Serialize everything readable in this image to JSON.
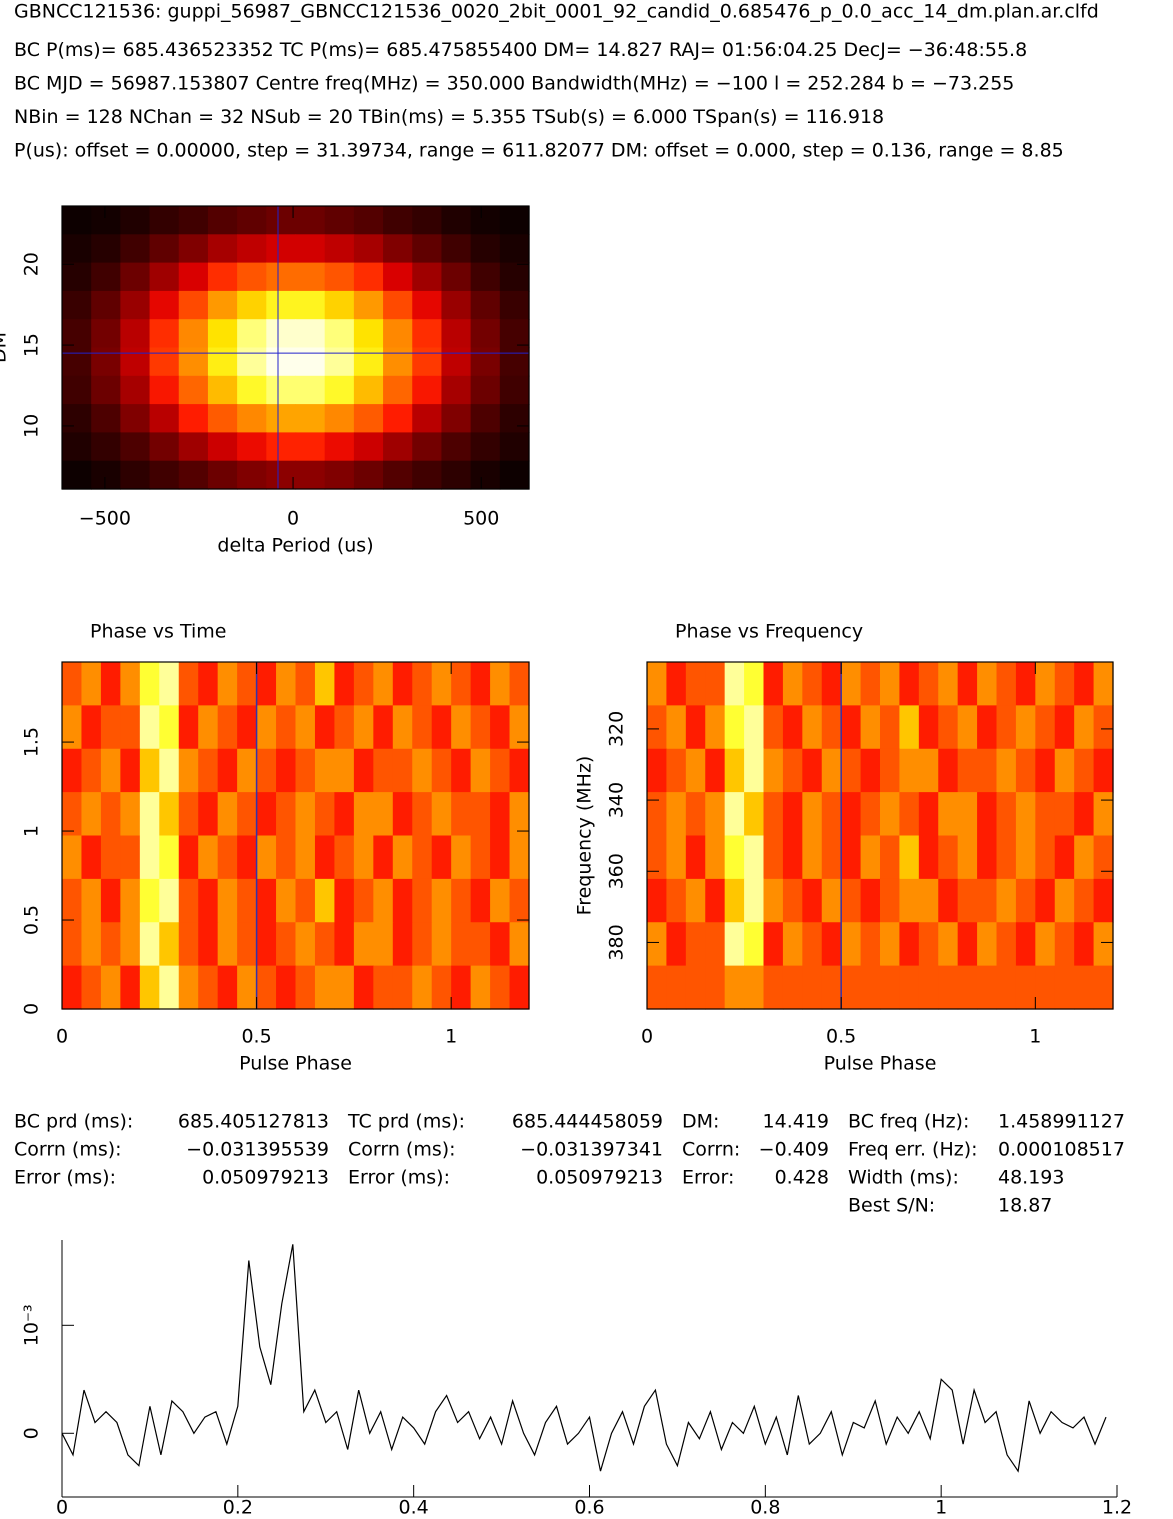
{
  "header": [
    "GBNCC121536: guppi_56987_GBNCC121536_0020_2bit_0001_92_candid_0.685476_p_0.0_acc_14_dm.plan.ar.clfd",
    "BC P(ms)= 685.436523352 TC P(ms)= 685.475855400 DM= 14.827 RAJ= 01:56:04.25 DecJ= −36:48:55.8",
    "BC MJD = 56987.153807 Centre freq(MHz) = 350.000 Bandwidth(MHz) = −100 l = 252.284 b = −73.255",
    "NBin = 128 NChan = 32 NSub = 20 TBin(ms) = 5.355 TSub(s) = 6.000 TSpan(s) = 116.918",
    "P(us): offset = 0.00000, step = 31.39734, range = 611.82077 DM: offset = 0.000, step = 0.136, range = 8.85"
  ],
  "stats": [
    [
      "BC prd (ms):",
      "685.405127813",
      "TC prd (ms):",
      "685.444458059",
      "DM:",
      "14.419",
      "BC freq (Hz):",
      "1.458991127"
    ],
    [
      "Corrn (ms):",
      "−0.031395539",
      "Corrn (ms):",
      "−0.031397341",
      "Corrn:",
      "−0.409",
      "Freq err. (Hz):",
      "0.000108517"
    ],
    [
      "Error (ms):",
      "0.050979213",
      "Error (ms):",
      "0.050979213",
      "Error:",
      "0.428",
      "Width (ms):",
      "48.193"
    ],
    [
      "Best S/N:",
      "18.87"
    ]
  ],
  "chart_data": [
    {
      "type": "heatmap",
      "xlabel": "delta Period (us)",
      "ylabel": "DM",
      "xlim": [
        -614,
        627
      ],
      "ylim": [
        6.1,
        23.6
      ],
      "xticks": [
        {
          "value": -500,
          "label": "−500"
        },
        0,
        500
      ],
      "yticks": [
        10,
        15,
        20
      ],
      "crosshair": {
        "x": -40,
        "y": 14.5
      },
      "crosshair_color": "#2222cc",
      "z": [
        [
          0.02,
          0.03,
          0.05,
          0.08,
          0.1,
          0.13,
          0.15,
          0.17,
          0.17,
          0.15,
          0.13,
          0.1,
          0.08,
          0.05,
          0.03,
          0.02
        ],
        [
          0.04,
          0.06,
          0.1,
          0.15,
          0.2,
          0.26,
          0.3,
          0.33,
          0.33,
          0.3,
          0.26,
          0.2,
          0.15,
          0.1,
          0.06,
          0.04
        ],
        [
          0.06,
          0.1,
          0.17,
          0.25,
          0.34,
          0.43,
          0.5,
          0.54,
          0.54,
          0.5,
          0.43,
          0.34,
          0.25,
          0.17,
          0.1,
          0.06
        ],
        [
          0.09,
          0.15,
          0.24,
          0.36,
          0.48,
          0.62,
          0.72,
          0.78,
          0.78,
          0.72,
          0.62,
          0.48,
          0.36,
          0.24,
          0.15,
          0.09
        ],
        [
          0.11,
          0.18,
          0.29,
          0.43,
          0.59,
          0.75,
          0.87,
          0.95,
          0.95,
          0.87,
          0.75,
          0.59,
          0.43,
          0.29,
          0.18,
          0.11
        ],
        [
          0.11,
          0.19,
          0.3,
          0.45,
          0.6,
          0.77,
          0.9,
          0.98,
          0.98,
          0.9,
          0.77,
          0.6,
          0.45,
          0.3,
          0.19,
          0.11
        ],
        [
          0.1,
          0.17,
          0.26,
          0.39,
          0.53,
          0.68,
          0.79,
          0.86,
          0.86,
          0.79,
          0.68,
          0.53,
          0.39,
          0.26,
          0.17,
          0.1
        ],
        [
          0.07,
          0.12,
          0.2,
          0.29,
          0.4,
          0.51,
          0.59,
          0.64,
          0.64,
          0.59,
          0.51,
          0.4,
          0.29,
          0.2,
          0.12,
          0.07
        ],
        [
          0.05,
          0.08,
          0.12,
          0.18,
          0.25,
          0.32,
          0.37,
          0.41,
          0.41,
          0.37,
          0.32,
          0.25,
          0.18,
          0.12,
          0.08,
          0.05
        ],
        [
          0.02,
          0.04,
          0.07,
          0.1,
          0.13,
          0.17,
          0.2,
          0.22,
          0.22,
          0.2,
          0.17,
          0.13,
          0.1,
          0.07,
          0.04,
          0.02
        ]
      ]
    },
    {
      "type": "heatmap",
      "title": "Phase vs Time",
      "xlabel": "Pulse Phase",
      "xlim": [
        0,
        1.2
      ],
      "ylim": [
        0,
        1.95
      ],
      "xticks": [
        0,
        0.5,
        1
      ],
      "yticks": [
        0,
        0.5,
        1,
        1.5
      ],
      "marker_x": 0.5,
      "crosshair_color": "#3333aa",
      "z": [
        [
          0.5,
          0.6,
          0.4,
          0.6,
          0.8,
          0.9,
          0.5,
          0.4,
          0.6,
          0.5,
          0.4,
          0.6,
          0.5,
          0.7,
          0.4,
          0.5,
          0.6,
          0.4,
          0.5,
          0.6,
          0.5,
          0.4,
          0.6,
          0.5
        ],
        [
          0.6,
          0.4,
          0.5,
          0.5,
          0.9,
          0.8,
          0.4,
          0.6,
          0.5,
          0.4,
          0.6,
          0.5,
          0.6,
          0.4,
          0.5,
          0.6,
          0.4,
          0.6,
          0.5,
          0.4,
          0.6,
          0.5,
          0.4,
          0.6
        ],
        [
          0.4,
          0.5,
          0.6,
          0.4,
          0.7,
          0.9,
          0.6,
          0.5,
          0.4,
          0.6,
          0.5,
          0.4,
          0.5,
          0.6,
          0.6,
          0.4,
          0.5,
          0.5,
          0.6,
          0.5,
          0.4,
          0.6,
          0.5,
          0.4
        ],
        [
          0.5,
          0.6,
          0.5,
          0.6,
          0.9,
          0.7,
          0.5,
          0.4,
          0.6,
          0.5,
          0.4,
          0.5,
          0.6,
          0.5,
          0.4,
          0.6,
          0.6,
          0.4,
          0.5,
          0.6,
          0.5,
          0.5,
          0.4,
          0.6
        ],
        [
          0.6,
          0.4,
          0.5,
          0.5,
          0.9,
          0.8,
          0.4,
          0.6,
          0.5,
          0.4,
          0.6,
          0.5,
          0.6,
          0.4,
          0.5,
          0.6,
          0.4,
          0.6,
          0.5,
          0.4,
          0.6,
          0.5,
          0.4,
          0.6
        ],
        [
          0.5,
          0.6,
          0.4,
          0.6,
          0.8,
          0.9,
          0.5,
          0.4,
          0.6,
          0.5,
          0.4,
          0.6,
          0.5,
          0.7,
          0.4,
          0.5,
          0.6,
          0.4,
          0.5,
          0.6,
          0.5,
          0.4,
          0.6,
          0.5
        ],
        [
          0.5,
          0.6,
          0.5,
          0.6,
          0.9,
          0.7,
          0.5,
          0.4,
          0.6,
          0.5,
          0.4,
          0.5,
          0.6,
          0.5,
          0.4,
          0.6,
          0.6,
          0.4,
          0.5,
          0.6,
          0.5,
          0.5,
          0.4,
          0.6
        ],
        [
          0.4,
          0.5,
          0.6,
          0.4,
          0.7,
          0.9,
          0.6,
          0.5,
          0.4,
          0.6,
          0.5,
          0.4,
          0.5,
          0.6,
          0.6,
          0.4,
          0.5,
          0.5,
          0.6,
          0.5,
          0.4,
          0.6,
          0.5,
          0.4
        ]
      ]
    },
    {
      "type": "heatmap",
      "title": "Phase vs Frequency",
      "xlabel": "Pulse Phase",
      "ylabel": "Frequency (MHz)",
      "xlim": [
        0,
        1.2
      ],
      "ylim": [
        398.7,
        301.2
      ],
      "xticks": [
        0,
        0.5,
        1
      ],
      "yticks": [
        320,
        340,
        360,
        380
      ],
      "marker_x": 0.5,
      "crosshair_color": "#3333aa",
      "z": [
        [
          0.6,
          0.4,
          0.5,
          0.5,
          0.9,
          0.8,
          0.4,
          0.6,
          0.5,
          0.4,
          0.6,
          0.5,
          0.6,
          0.4,
          0.5,
          0.6,
          0.4,
          0.6,
          0.5,
          0.4,
          0.6,
          0.5,
          0.4,
          0.6
        ],
        [
          0.5,
          0.6,
          0.4,
          0.6,
          0.8,
          0.9,
          0.5,
          0.4,
          0.6,
          0.5,
          0.4,
          0.6,
          0.5,
          0.7,
          0.4,
          0.5,
          0.6,
          0.4,
          0.5,
          0.6,
          0.5,
          0.4,
          0.6,
          0.5
        ],
        [
          0.4,
          0.5,
          0.6,
          0.4,
          0.7,
          0.9,
          0.6,
          0.5,
          0.4,
          0.6,
          0.5,
          0.4,
          0.5,
          0.6,
          0.6,
          0.4,
          0.5,
          0.5,
          0.6,
          0.5,
          0.4,
          0.6,
          0.5,
          0.4
        ],
        [
          0.5,
          0.6,
          0.5,
          0.6,
          0.9,
          0.7,
          0.5,
          0.4,
          0.6,
          0.5,
          0.4,
          0.5,
          0.6,
          0.5,
          0.4,
          0.6,
          0.6,
          0.4,
          0.5,
          0.6,
          0.5,
          0.5,
          0.4,
          0.6
        ],
        [
          0.5,
          0.6,
          0.4,
          0.6,
          0.8,
          0.9,
          0.5,
          0.4,
          0.6,
          0.5,
          0.4,
          0.6,
          0.5,
          0.7,
          0.4,
          0.5,
          0.6,
          0.4,
          0.5,
          0.6,
          0.5,
          0.4,
          0.6,
          0.5
        ],
        [
          0.4,
          0.5,
          0.6,
          0.4,
          0.7,
          0.9,
          0.6,
          0.5,
          0.4,
          0.6,
          0.5,
          0.4,
          0.5,
          0.6,
          0.6,
          0.4,
          0.5,
          0.5,
          0.6,
          0.5,
          0.4,
          0.6,
          0.5,
          0.4
        ],
        [
          0.6,
          0.4,
          0.5,
          0.5,
          0.9,
          0.8,
          0.4,
          0.6,
          0.5,
          0.4,
          0.6,
          0.5,
          0.6,
          0.4,
          0.5,
          0.6,
          0.4,
          0.6,
          0.5,
          0.4,
          0.6,
          0.5,
          0.4,
          0.6
        ],
        [
          0.5,
          0.5,
          0.5,
          0.5,
          0.6,
          0.6,
          0.5,
          0.5,
          0.5,
          0.5,
          0.5,
          0.5,
          0.5,
          0.5,
          0.5,
          0.5,
          0.5,
          0.5,
          0.5,
          0.5,
          0.5,
          0.5,
          0.5,
          0.5
        ]
      ]
    },
    {
      "type": "line",
      "color": "#000000",
      "xlim": [
        0,
        1.2
      ],
      "ylim": [
        -0.00059,
        0.00179
      ],
      "xticks": [
        0,
        0.2,
        0.4,
        0.6,
        0.8,
        1,
        1.2
      ],
      "yticks": [
        0,
        {
          "value": 0.001,
          "label": "10⁻³"
        }
      ],
      "x": [
        0,
        0.0125,
        0.025,
        0.0375,
        0.05,
        0.0625,
        0.075,
        0.0875,
        0.1,
        0.1125,
        0.125,
        0.1375,
        0.15,
        0.1625,
        0.175,
        0.1875,
        0.2,
        0.2125,
        0.225,
        0.2375,
        0.25,
        0.2625,
        0.275,
        0.2875,
        0.3,
        0.3125,
        0.325,
        0.3375,
        0.35,
        0.3625,
        0.375,
        0.3875,
        0.4,
        0.4125,
        0.425,
        0.4375,
        0.45,
        0.4625,
        0.475,
        0.4875,
        0.5,
        0.5125,
        0.525,
        0.5375,
        0.55,
        0.5625,
        0.575,
        0.5875,
        0.6,
        0.6125,
        0.625,
        0.6375,
        0.65,
        0.6625,
        0.675,
        0.6875,
        0.7,
        0.7125,
        0.725,
        0.7375,
        0.75,
        0.7625,
        0.775,
        0.7875,
        0.8,
        0.8125,
        0.825,
        0.8375,
        0.85,
        0.8625,
        0.875,
        0.8875,
        0.9,
        0.9125,
        0.925,
        0.9375,
        0.95,
        0.9625,
        0.975,
        0.9875,
        1,
        1.0125,
        1.025,
        1.0375,
        1.05,
        1.0625,
        1.075,
        1.0875,
        1.1,
        1.1125,
        1.125,
        1.1375,
        1.15,
        1.1625,
        1.175,
        1.1875
      ],
      "values": [
        0,
        -0.0002,
        0.0004,
        0.0001,
        0.0002,
        0.0001,
        -0.0002,
        -0.0003,
        0.00025,
        -0.0002,
        0.0003,
        0.0002,
        0,
        0.00015,
        0.0002,
        -0.0001,
        0.00025,
        0.0016,
        0.0008,
        0.00045,
        0.0012,
        0.00175,
        0.0002,
        0.0004,
        0.0001,
        0.0002,
        -0.00015,
        0.0004,
        0,
        0.0002,
        -0.00015,
        0.00015,
        5e-05,
        -0.0001,
        0.0002,
        0.00035,
        0.0001,
        0.0002,
        -5e-05,
        0.00015,
        -0.0001,
        0.0003,
        0,
        -0.0002,
        0.0001,
        0.00025,
        -0.0001,
        0,
        0.00015,
        -0.00035,
        0,
        0.0002,
        -0.0001,
        0.00025,
        0.0004,
        -0.0001,
        -0.0003,
        0.0001,
        -5e-05,
        0.0002,
        -0.00015,
        0.0001,
        0,
        0.00025,
        -0.0001,
        0.00015,
        -0.0002,
        0.00035,
        -0.0001,
        0,
        0.0002,
        -0.0002,
        0.0001,
        5e-05,
        0.0003,
        -0.0001,
        0.00015,
        0,
        0.0002,
        -5e-05,
        0.0005,
        0.0004,
        -0.0001,
        0.0004,
        0.0001,
        0.0002,
        -0.0002,
        -0.00035,
        0.0003,
        0,
        0.0002,
        0.0001,
        5e-05,
        0.00015,
        -0.0001,
        0.00015
      ]
    }
  ]
}
